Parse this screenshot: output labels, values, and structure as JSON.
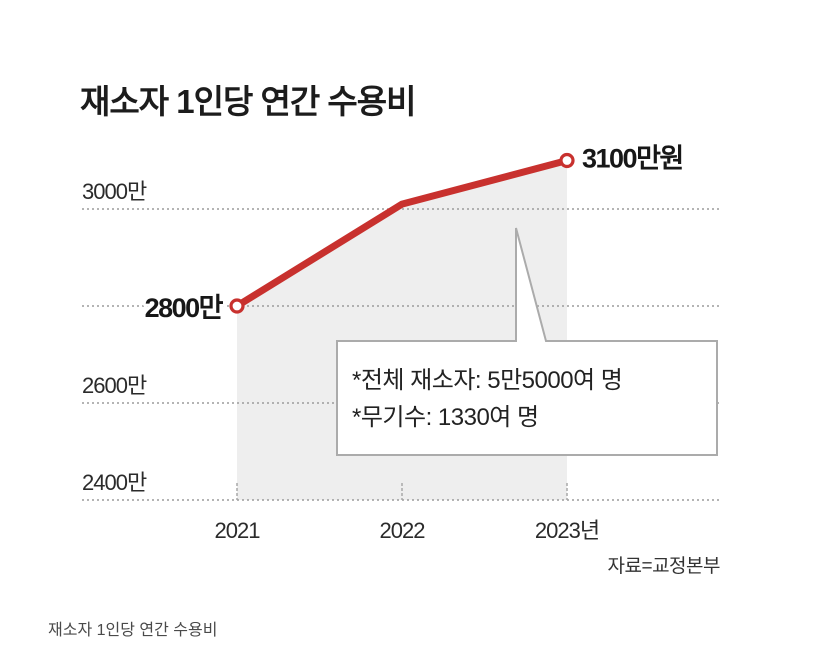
{
  "chart_data": {
    "type": "line",
    "title": "재소자 1인당 연간 수용비",
    "categories": [
      "2021",
      "2022",
      "2023년"
    ],
    "series": [
      {
        "values": [
          2800,
          3010,
          3100
        ]
      }
    ],
    "ylim": [
      2400,
      3100
    ],
    "gridlines": [
      2400,
      2600,
      2800,
      3000
    ],
    "yticks": [
      3000,
      2600,
      2400
    ],
    "ytick_labels": [
      "3000만",
      "2600만",
      "2400만"
    ],
    "data_labels": [
      {
        "index": 0,
        "text": "2800만"
      },
      {
        "index": 2,
        "text": "3100만원"
      }
    ],
    "annotation": {
      "lines": [
        "*전체 재소자: 5만5000여 명",
        "*무기수: 1330여 명"
      ]
    },
    "source": "자료=교정본부",
    "grid": true,
    "line_color": "#c8312e",
    "area_color": "#eeeeee"
  },
  "caption": "재소자 1인당 연간 수용비"
}
